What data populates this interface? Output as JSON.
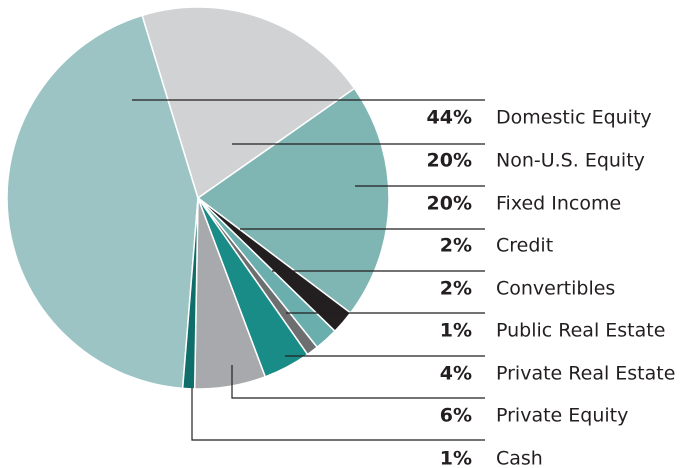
{
  "chart_data": {
    "type": "pie",
    "categories": [
      "Domestic Equity",
      "Non-U.S. Equity",
      "Fixed Income",
      "Credit",
      "Convertibles",
      "Public Real Estate",
      "Private Real Estate",
      "Private Equity",
      "Cash"
    ],
    "values": [
      44,
      20,
      20,
      2,
      2,
      1,
      4,
      6,
      1
    ],
    "value_labels": [
      "44%",
      "20%",
      "20%",
      "2%",
      "2%",
      "1%",
      "4%",
      "6%",
      "1%"
    ],
    "colors": [
      "#9cc4c4",
      "#d1d2d4",
      "#7fb5b3",
      "#231f20",
      "#6aaeae",
      "#6d6e70",
      "#1a8c87",
      "#a7a9ac",
      "#0f6e6a"
    ]
  }
}
